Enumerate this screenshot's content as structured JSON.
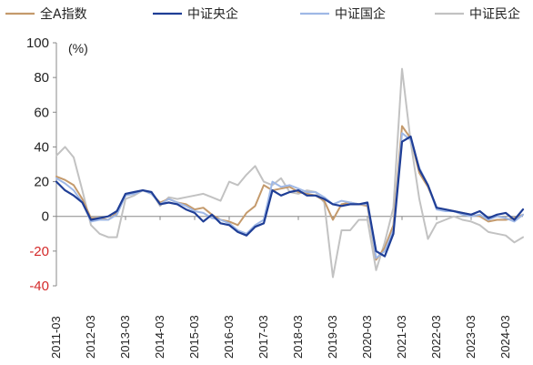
{
  "chart_data": {
    "type": "line",
    "title": "",
    "unit_label": "(%)",
    "ylim": [
      -40,
      100
    ],
    "yticks": [
      -40,
      -20,
      0,
      20,
      40,
      60,
      80,
      100
    ],
    "xticks": [
      "2011-03",
      "2012-03",
      "2013-03",
      "2014-03",
      "2015-03",
      "2016-03",
      "2017-03",
      "2018-03",
      "2019-03",
      "2020-03",
      "2021-03",
      "2022-03",
      "2023-03",
      "2024-03"
    ],
    "x": [
      "2011-03",
      "2011-06",
      "2011-09",
      "2011-12",
      "2012-03",
      "2012-06",
      "2012-09",
      "2012-12",
      "2013-03",
      "2013-06",
      "2013-09",
      "2013-12",
      "2014-03",
      "2014-06",
      "2014-09",
      "2014-12",
      "2015-03",
      "2015-06",
      "2015-09",
      "2015-12",
      "2016-03",
      "2016-06",
      "2016-09",
      "2016-12",
      "2017-03",
      "2017-06",
      "2017-09",
      "2017-12",
      "2018-03",
      "2018-06",
      "2018-09",
      "2018-12",
      "2019-03",
      "2019-06",
      "2019-09",
      "2019-12",
      "2020-03",
      "2020-06",
      "2020-09",
      "2020-12",
      "2021-03",
      "2021-06",
      "2021-09",
      "2021-12",
      "2022-03",
      "2022-06",
      "2022-09",
      "2022-12",
      "2023-03",
      "2023-06",
      "2023-09",
      "2023-12",
      "2024-03",
      "2024-06",
      "2024-09"
    ],
    "series": [
      {
        "name": "全A指数",
        "color": "#c49a6c",
        "width": 2,
        "values": [
          23,
          21,
          18,
          10,
          -1,
          -1,
          -2,
          2,
          12,
          14,
          15,
          13,
          8,
          10,
          8,
          7,
          4,
          5,
          1,
          -2,
          -3,
          -5,
          2,
          6,
          18,
          15,
          16,
          17,
          14,
          13,
          12,
          9,
          -2,
          7,
          8,
          7,
          6,
          -25,
          -18,
          -5,
          52,
          45,
          25,
          17,
          5,
          4,
          3,
          2,
          1,
          0,
          -3,
          -2,
          -2,
          -1,
          1
        ]
      },
      {
        "name": "中证央企",
        "color": "#1f3e96",
        "width": 2.2,
        "values": [
          20,
          15,
          12,
          8,
          -2,
          -1,
          0,
          3,
          13,
          14,
          15,
          14,
          7,
          8,
          7,
          4,
          2,
          -3,
          1,
          -4,
          -5,
          -9,
          -11,
          -6,
          -4,
          15,
          12,
          14,
          15,
          12,
          12,
          10,
          7,
          6,
          7,
          7,
          8,
          -20,
          -23,
          -10,
          43,
          46,
          27,
          18,
          5,
          4,
          3,
          2,
          1,
          3,
          -1,
          1,
          2,
          -2,
          4
        ]
      },
      {
        "name": "中证国企",
        "color": "#9fb8e6",
        "width": 2,
        "values": [
          22,
          19,
          15,
          8,
          -3,
          -2,
          -2,
          1,
          12,
          13,
          15,
          13,
          7,
          10,
          8,
          6,
          3,
          2,
          -1,
          -2,
          -4,
          -8,
          -10,
          -5,
          -2,
          20,
          17,
          18,
          16,
          14,
          14,
          11,
          7,
          9,
          8,
          7,
          7,
          -24,
          -20,
          -8,
          48,
          44,
          28,
          18,
          4,
          3,
          3,
          1,
          0,
          1,
          -2,
          0,
          -1,
          -3,
          1
        ]
      },
      {
        "name": "中证民企",
        "color": "#c2c2c2",
        "width": 2,
        "values": [
          35,
          40,
          34,
          15,
          -5,
          -10,
          -12,
          -12,
          10,
          12,
          15,
          14,
          6,
          11,
          10,
          11,
          12,
          13,
          11,
          9,
          20,
          18,
          24,
          29,
          20,
          18,
          22,
          14,
          13,
          15,
          14,
          8,
          -35,
          -8,
          -8,
          -2,
          -2,
          -31,
          -15,
          5,
          85,
          43,
          10,
          -13,
          -4,
          -2,
          0,
          -2,
          -3,
          -5,
          -9,
          -10,
          -11,
          -15,
          -12
        ]
      }
    ],
    "grid": false,
    "legend_position": "top"
  }
}
